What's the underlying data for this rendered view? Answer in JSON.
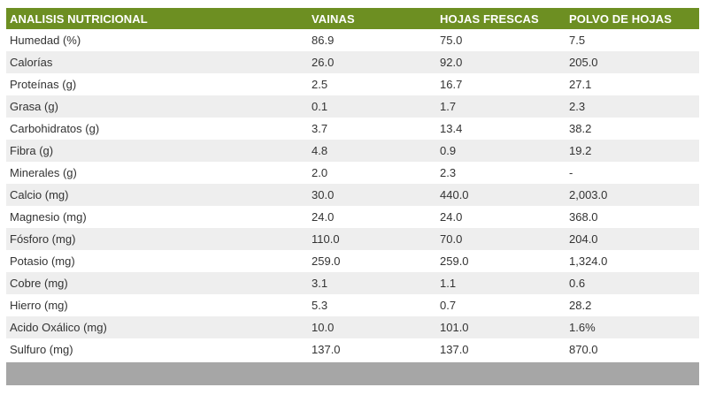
{
  "table": {
    "headers": [
      "ANALISIS NUTRICIONAL",
      "VAINAS",
      "HOJAS FRESCAS",
      "POLVO DE HOJAS"
    ],
    "rows": [
      [
        "Humedad (%)",
        "86.9",
        "75.0",
        "7.5"
      ],
      [
        "Calorías",
        "26.0",
        "92.0",
        "205.0"
      ],
      [
        "Proteínas (g)",
        "2.5",
        "16.7",
        "27.1"
      ],
      [
        "Grasa (g)",
        "0.1",
        "1.7",
        "2.3"
      ],
      [
        "Carbohidratos (g)",
        "3.7",
        "13.4",
        "38.2"
      ],
      [
        "Fibra (g)",
        "4.8",
        "0.9",
        "19.2"
      ],
      [
        "Minerales (g)",
        "2.0",
        "2.3",
        "-"
      ],
      [
        "Calcio (mg)",
        "30.0",
        "440.0",
        "2,003.0"
      ],
      [
        "Magnesio (mg)",
        "24.0",
        "24.0",
        "368.0"
      ],
      [
        "Fósforo (mg)",
        "110.0",
        "70.0",
        "204.0"
      ],
      [
        "Potasio (mg)",
        "259.0",
        "259.0",
        "1,324.0"
      ],
      [
        "Cobre (mg)",
        "3.1",
        "1.1",
        "0.6"
      ],
      [
        "Hierro (mg)",
        "5.3",
        "0.7",
        "28.2"
      ],
      [
        "Acido Oxálico (mg)",
        "10.0",
        "101.0",
        "1.6%"
      ],
      [
        "Sulfuro (mg)",
        "137.0",
        "137.0",
        "870.0"
      ]
    ]
  },
  "colors": {
    "header_bg": "#6d8f22",
    "header_text": "#ffffff",
    "row_alt_bg": "#eeeeee",
    "footer_bg": "#a6a6a6"
  }
}
